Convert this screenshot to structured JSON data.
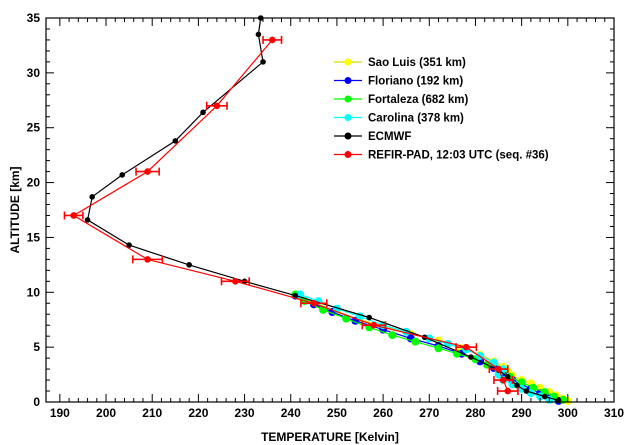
{
  "chart_data": {
    "type": "line",
    "title": "",
    "xlabel": "TEMPERATURE [Kelvin]",
    "ylabel": "ALTITUDE [km]",
    "xlim": [
      187,
      310
    ],
    "ylim": [
      0,
      35
    ],
    "xticks": [
      "190",
      "200",
      "210",
      "220",
      "230",
      "240",
      "250",
      "260",
      "270",
      "280",
      "290",
      "300",
      "310"
    ],
    "yticks": [
      "0",
      "5",
      "10",
      "15",
      "20",
      "25",
      "30",
      "35"
    ],
    "grid": false,
    "legend_position": "top-right",
    "series": [
      {
        "name": "Sao Luis (351 km)",
        "color": "#ffff00",
        "points": [
          [
            300.0,
            0.1
          ],
          [
            299.0,
            0.3
          ],
          [
            297.5,
            0.6
          ],
          [
            296.0,
            0.9
          ],
          [
            294.0,
            1.3
          ],
          [
            292.0,
            1.7
          ],
          [
            290.0,
            2.0
          ],
          [
            288.0,
            2.4
          ],
          [
            287.0,
            2.8
          ],
          [
            286.0,
            3.2
          ],
          [
            284.0,
            3.7
          ],
          [
            281.0,
            4.3
          ],
          [
            277.0,
            4.9
          ],
          [
            272.0,
            5.6
          ],
          [
            266.0,
            6.2
          ],
          [
            260.0,
            6.9
          ],
          [
            255.0,
            7.5
          ],
          [
            250.0,
            8.2
          ],
          [
            246.0,
            8.9
          ],
          [
            242.0,
            9.6
          ]
        ]
      },
      {
        "name": "Floriano (192 km)",
        "color": "#0000ff",
        "points": [
          [
            298.0,
            0.1
          ],
          [
            296.0,
            0.4
          ],
          [
            294.0,
            0.8
          ],
          [
            292.0,
            1.2
          ],
          [
            290.0,
            1.6
          ],
          [
            288.0,
            2.0
          ],
          [
            286.0,
            2.5
          ],
          [
            284.0,
            3.1
          ],
          [
            281.0,
            3.7
          ],
          [
            277.0,
            4.4
          ],
          [
            272.0,
            5.1
          ],
          [
            266.0,
            5.8
          ],
          [
            260.0,
            6.6
          ],
          [
            254.0,
            7.4
          ],
          [
            249.0,
            8.2
          ],
          [
            245.0,
            8.9
          ],
          [
            241.0,
            9.7
          ]
        ]
      },
      {
        "name": "Fortaleza (682 km)",
        "color": "#00ff00",
        "points": [
          [
            299.0,
            0.2
          ],
          [
            297.0,
            0.5
          ],
          [
            295.0,
            0.9
          ],
          [
            292.5,
            1.3
          ],
          [
            290.0,
            1.8
          ],
          [
            287.5,
            2.3
          ],
          [
            285.0,
            2.9
          ],
          [
            282.5,
            3.4
          ],
          [
            280.0,
            3.9
          ],
          [
            276.0,
            4.4
          ],
          [
            272.0,
            4.9
          ],
          [
            267.0,
            5.5
          ],
          [
            262.0,
            6.1
          ],
          [
            257.0,
            6.8
          ],
          [
            252.0,
            7.6
          ],
          [
            247.0,
            8.4
          ],
          [
            243.0,
            9.2
          ],
          [
            241.0,
            9.8
          ]
        ]
      },
      {
        "name": "Carolina (378 km)",
        "color": "#00ffff",
        "points": [
          [
            296.0,
            0.2
          ],
          [
            294.0,
            0.5
          ],
          [
            292.0,
            0.8
          ],
          [
            290.0,
            1.2
          ],
          [
            288.0,
            1.6
          ],
          [
            286.0,
            2.0
          ],
          [
            285.0,
            2.5
          ],
          [
            286.0,
            3.0
          ],
          [
            284.0,
            3.6
          ],
          [
            281.0,
            4.2
          ],
          [
            278.0,
            4.8
          ],
          [
            274.0,
            5.3
          ],
          [
            270.0,
            5.8
          ],
          [
            265.0,
            6.4
          ],
          [
            260.0,
            7.0
          ],
          [
            255.0,
            7.8
          ],
          [
            250.0,
            8.5
          ],
          [
            246.0,
            9.2
          ],
          [
            242.0,
            9.8
          ]
        ]
      },
      {
        "name": "ECMWF",
        "color": "#000000",
        "points": [
          [
            298.0,
            0.15
          ],
          [
            295.0,
            0.5
          ],
          [
            291.0,
            1.0
          ],
          [
            289.0,
            1.5
          ],
          [
            287.0,
            2.3
          ],
          [
            285.0,
            2.9
          ],
          [
            279.0,
            4.1
          ],
          [
            269.0,
            5.9
          ],
          [
            257.0,
            7.7
          ],
          [
            241.0,
            9.7
          ],
          [
            230.0,
            11.0
          ],
          [
            218.0,
            12.5
          ],
          [
            205.0,
            14.3
          ],
          [
            196.0,
            16.6
          ],
          [
            197.0,
            18.7
          ],
          [
            203.5,
            20.7
          ],
          [
            215.0,
            23.8
          ],
          [
            221.0,
            26.4
          ],
          [
            234.0,
            31.0
          ],
          [
            233.0,
            33.5
          ],
          [
            233.5,
            35.0
          ]
        ]
      },
      {
        "name": "REFIR-PAD, 12:03 UTC (seq. #36)",
        "color": "#ff0000",
        "points": [
          [
            287.0,
            1.0
          ],
          [
            286.0,
            2.0
          ],
          [
            285.0,
            3.0
          ],
          [
            278.0,
            5.0
          ],
          [
            258.0,
            7.0
          ],
          [
            245.0,
            9.0
          ],
          [
            228.0,
            11.0
          ],
          [
            209.0,
            13.0
          ],
          [
            193.0,
            17.0
          ],
          [
            209.0,
            21.0
          ],
          [
            224.0,
            27.0
          ],
          [
            236.0,
            33.0
          ]
        ],
        "xerr": [
          2.2,
          2.0,
          2.0,
          2.2,
          2.5,
          2.8,
          3.0,
          3.2,
          2.0,
          2.5,
          2.2,
          2.0
        ]
      }
    ]
  }
}
